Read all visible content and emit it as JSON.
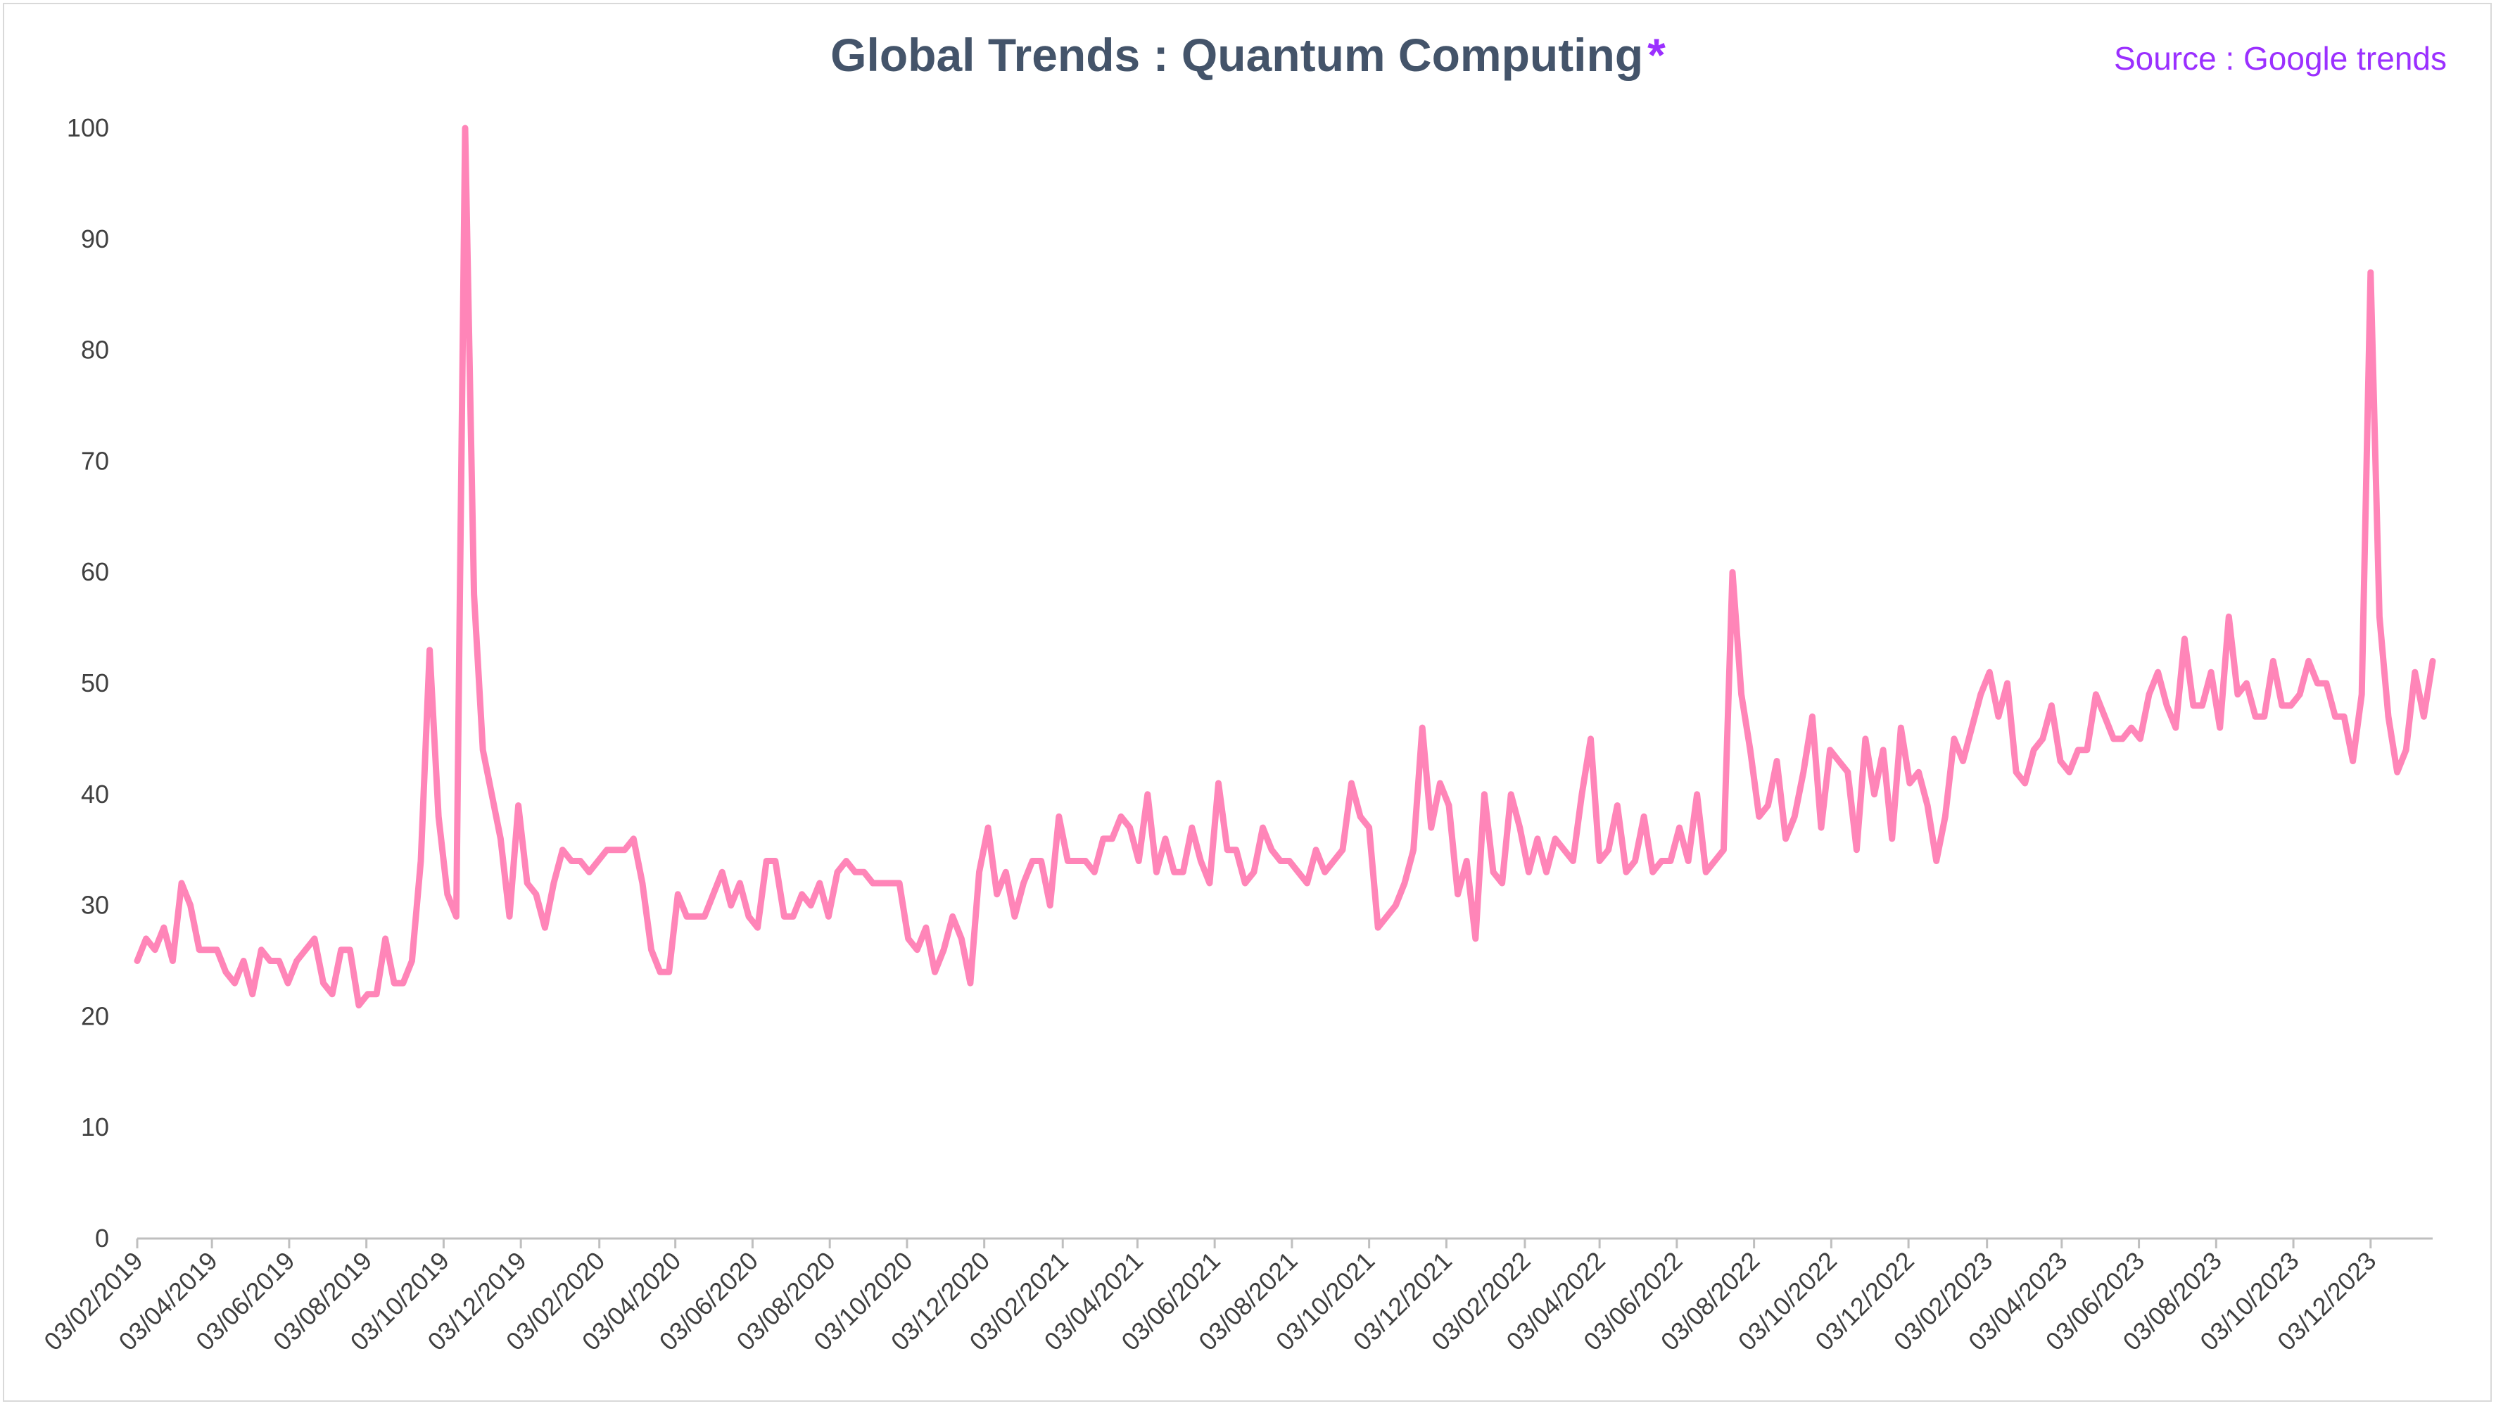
{
  "header": {
    "title": "Global Trends : Quantum Computing",
    "title_mark": "*",
    "source": "Source : Google trends"
  },
  "chart_data": {
    "type": "line",
    "title": "Global Trends : Quantum Computing *",
    "xlabel": "",
    "ylabel": "",
    "ylim": [
      0,
      100
    ],
    "yticks": [
      0,
      10,
      20,
      30,
      40,
      50,
      60,
      70,
      80,
      90,
      100
    ],
    "xticks": [
      "03/02/2019",
      "03/04/2019",
      "03/06/2019",
      "03/08/2019",
      "03/10/2019",
      "03/12/2019",
      "03/02/2020",
      "03/04/2020",
      "03/06/2020",
      "03/08/2020",
      "03/10/2020",
      "03/12/2020",
      "03/02/2021",
      "03/04/2021",
      "03/06/2021",
      "03/08/2021",
      "03/10/2021",
      "03/12/2021",
      "03/02/2022",
      "03/04/2022",
      "03/06/2022",
      "03/08/2022",
      "03/10/2022",
      "03/12/2022",
      "03/02/2023",
      "03/04/2023",
      "03/06/2023",
      "03/08/2023",
      "03/10/2023",
      "03/12/2023"
    ],
    "grid": false,
    "legend": "none",
    "line_color": "#ff85b8",
    "series": [
      {
        "x_start": "03/02/2019",
        "x_step": "1 week",
        "values": [
          25,
          27,
          26,
          28,
          25,
          32,
          30,
          26,
          26,
          26,
          24,
          23,
          25,
          22,
          26,
          25,
          25,
          23,
          25,
          26,
          27,
          23,
          22,
          26,
          26,
          21,
          22,
          22,
          27,
          23,
          23,
          25,
          34,
          53,
          38,
          31,
          29,
          100,
          58,
          44,
          40,
          36,
          29,
          39,
          32,
          31,
          28,
          32,
          35,
          34,
          34,
          33,
          34,
          35,
          35,
          35,
          36,
          32,
          26,
          24,
          24,
          31,
          29,
          29,
          29,
          31,
          33,
          30,
          32,
          29,
          28,
          34,
          34,
          29,
          29,
          31,
          30,
          32,
          29,
          33,
          34,
          33,
          33,
          32,
          32,
          32,
          32,
          27,
          26,
          28,
          24,
          26,
          29,
          27,
          23,
          33,
          37,
          31,
          33,
          29,
          32,
          34,
          34,
          30,
          38,
          34,
          34,
          34,
          33,
          36,
          36,
          38,
          37,
          34,
          40,
          33,
          36,
          33,
          33,
          37,
          34,
          32,
          41,
          35,
          35,
          32,
          33,
          37,
          35,
          34,
          34,
          33,
          32,
          35,
          33,
          34,
          35,
          41,
          38,
          37,
          28,
          29,
          30,
          32,
          35,
          46,
          37,
          41,
          39,
          31,
          34,
          27,
          40,
          33,
          32,
          40,
          37,
          33,
          36,
          33,
          36,
          35,
          34,
          40,
          45,
          34,
          35,
          39,
          33,
          34,
          38,
          33,
          34,
          34,
          37,
          34,
          40,
          33,
          34,
          35,
          60,
          49,
          44,
          38,
          39,
          43,
          36,
          38,
          42,
          47,
          37,
          44,
          43,
          42,
          35,
          45,
          40,
          44,
          36,
          46,
          41,
          42,
          39,
          34,
          38,
          45,
          43,
          46,
          49,
          51,
          47,
          50,
          42,
          41,
          44,
          45,
          48,
          43,
          42,
          44,
          44,
          49,
          47,
          45,
          45,
          46,
          45,
          49,
          51,
          48,
          46,
          54,
          48,
          48,
          51,
          46,
          56,
          49,
          50,
          47,
          47,
          52,
          48,
          48,
          49,
          52,
          50,
          50,
          47,
          47,
          43,
          49,
          87,
          56,
          47,
          42,
          44,
          51,
          47,
          52
        ]
      }
    ]
  }
}
